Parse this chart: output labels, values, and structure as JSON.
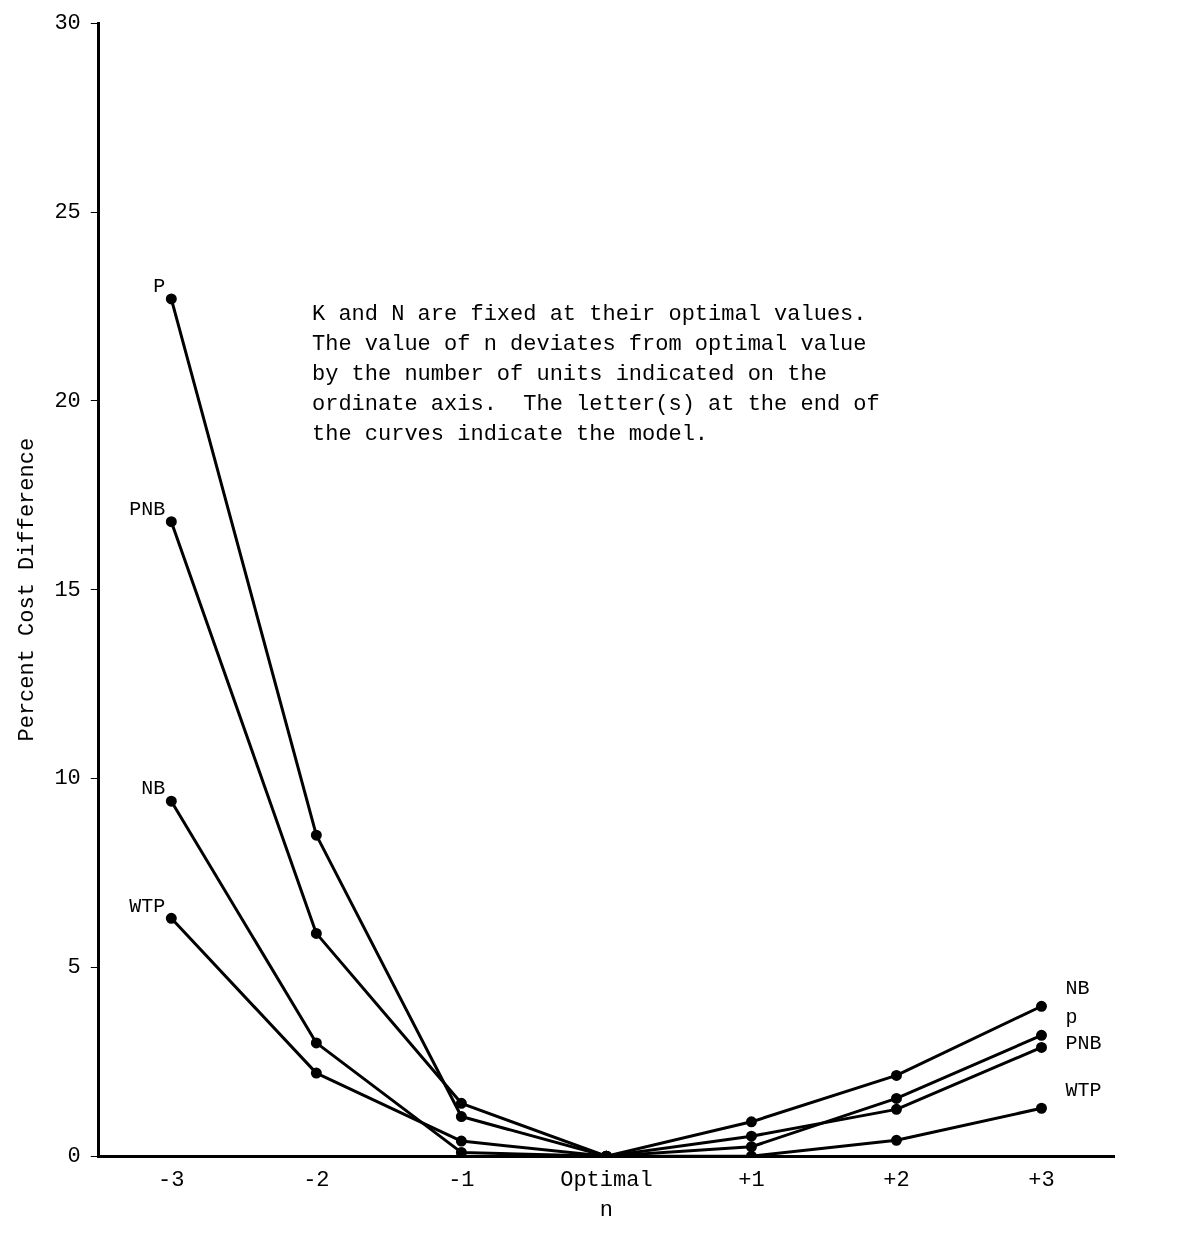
{
  "chart_data": {
    "type": "line",
    "xlabel": "n",
    "ylabel": "Percent Cost Difference",
    "categories": [
      "-3",
      "-2",
      "-1",
      "Optimal",
      "+1",
      "+2",
      "+3"
    ],
    "series": [
      {
        "name": "P",
        "color": "#000000",
        "values": [
          22.7,
          8.5,
          1.05,
          0,
          0.25,
          1.53,
          3.2
        ]
      },
      {
        "name": "PNB",
        "color": "#000000",
        "values": [
          16.8,
          5.9,
          1.4,
          0,
          0.53,
          1.24,
          2.88
        ]
      },
      {
        "name": "NB",
        "color": "#000000",
        "values": [
          9.4,
          3.0,
          0.1,
          0,
          0.91,
          2.14,
          3.97
        ]
      },
      {
        "name": "WTP",
        "color": "#000000",
        "values": [
          6.3,
          2.2,
          0.4,
          0,
          0,
          0.42,
          1.27
        ]
      }
    ],
    "ylim": [
      0,
      30
    ],
    "yticks": [
      0,
      5,
      10,
      15,
      20,
      25,
      30
    ],
    "grid": false,
    "legend": false,
    "marker": "circle",
    "line_style": "solid",
    "annotations": [
      "K and N are fixed at their optimal values.\nThe value of n deviates from optimal value\nby the number of units indicated on the\nordinate axis.  The letter(s) at the end of\nthe curves indicate the model.",
      {
        "text": "NB",
        "x": "+3",
        "y": 3.97
      },
      {
        "text": "p",
        "x": "+3",
        "y": 3.2
      },
      {
        "text": "PNB",
        "x": "+3",
        "y": 2.88
      },
      {
        "text": "WTP",
        "x": "+3",
        "y": 1.27
      }
    ]
  }
}
